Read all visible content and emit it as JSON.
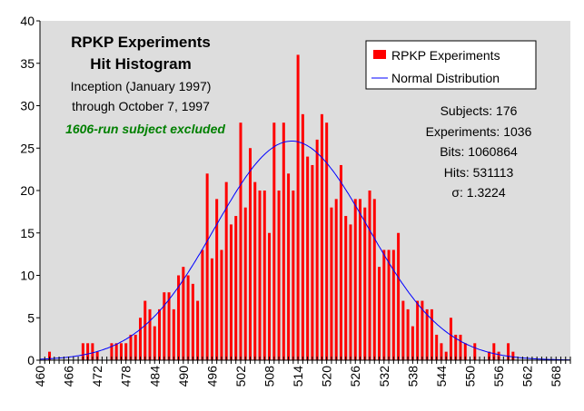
{
  "chart_data": {
    "type": "bar",
    "title": "RPKP Experiments",
    "subtitle": "Hit Histogram",
    "annotations": [
      "Inception (January 1997)",
      "through October 7, 1997"
    ],
    "note": "1606-run subject excluded",
    "stats": [
      "Subjects: 176",
      "Experiments: 1036",
      "Bits: 1060864",
      "Hits: 531113",
      "σ: 1.3224"
    ],
    "stats_values": {
      "subjects": 176,
      "experiments": 1036,
      "bits": 1060864,
      "hits": 531113,
      "sigma": 1.3224
    },
    "legend": [
      "RPKP Experiments",
      "Normal Distribution"
    ],
    "legend_placement": "top-right",
    "xlim": [
      460,
      571
    ],
    "ylim": [
      0,
      40
    ],
    "x_ticks": [
      460,
      466,
      472,
      478,
      484,
      490,
      496,
      502,
      508,
      514,
      520,
      526,
      532,
      538,
      544,
      550,
      556,
      562,
      568
    ],
    "y_ticks": [
      0,
      5,
      10,
      15,
      20,
      25,
      30,
      35,
      40
    ],
    "grid": false,
    "x_start": 460,
    "values": [
      0,
      0,
      1,
      0,
      0,
      0,
      0,
      0,
      0,
      2,
      2,
      2,
      1,
      0,
      0,
      2,
      2,
      2,
      2,
      3,
      3,
      5,
      7,
      6,
      4,
      6,
      8,
      8,
      6,
      10,
      11,
      10,
      9,
      7,
      13,
      22,
      12,
      19,
      13,
      21,
      16,
      17,
      28,
      18,
      25,
      21,
      20,
      20,
      15,
      28,
      20,
      28,
      22,
      20,
      36,
      29,
      24,
      23,
      26,
      29,
      28,
      18,
      19,
      23,
      17,
      16,
      19,
      19,
      18,
      20,
      19,
      11,
      13,
      13,
      13,
      15,
      7,
      6,
      4,
      7,
      7,
      6,
      6,
      3,
      2,
      1,
      5,
      3,
      3,
      2,
      0,
      2,
      0,
      0,
      1,
      2,
      1,
      0,
      2,
      1,
      0,
      0,
      0,
      0,
      0,
      0,
      0,
      0,
      0,
      0,
      0,
      0
    ],
    "colors": {
      "bars": "#ff0000",
      "curve": "#0000ff",
      "plot_background": "#dddddd",
      "note": "#008000"
    }
  }
}
